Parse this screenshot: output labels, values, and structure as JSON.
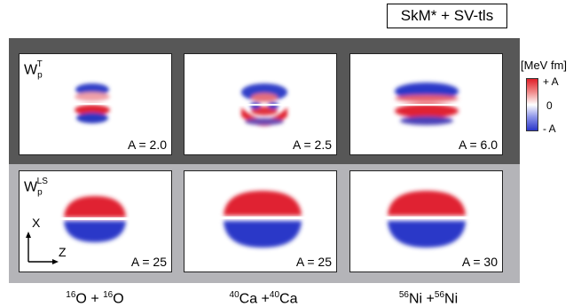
{
  "title": "SkM* + SV-tls",
  "colorbar": {
    "unit": "[MeV fm]",
    "max_label": "+ A",
    "mid_label": "0",
    "min_label": "- A",
    "max_color": "#e0202a",
    "mid_color": "#ffffff",
    "min_color": "#2a36c8"
  },
  "rows": [
    {
      "label_main": "W",
      "label_sub": "p",
      "label_sup": "T",
      "band_color": "#575757"
    },
    {
      "label_main": "W",
      "label_sub": "p",
      "label_sup": "LS",
      "band_color": "#b4b4b8"
    }
  ],
  "panels": [
    {
      "row": 0,
      "col": 0,
      "amplitude": "A = 2.0",
      "pattern": "tensor-small"
    },
    {
      "row": 0,
      "col": 1,
      "amplitude": "A = 2.5",
      "pattern": "tensor-ring"
    },
    {
      "row": 0,
      "col": 2,
      "amplitude": "A = 6.0",
      "pattern": "tensor-large"
    },
    {
      "row": 1,
      "col": 0,
      "amplitude": "A = 25",
      "pattern": "ls-small"
    },
    {
      "row": 1,
      "col": 1,
      "amplitude": "A = 25",
      "pattern": "ls-medium"
    },
    {
      "row": 1,
      "col": 2,
      "amplitude": "A = 30",
      "pattern": "ls-large"
    }
  ],
  "axes": {
    "vertical": "X",
    "horizontal": "Z"
  },
  "systems": [
    {
      "a1": "16",
      "el1": "O",
      "op": " + ",
      "a2": "16",
      "el2": "O"
    },
    {
      "a1": "40",
      "el1": "Ca",
      "op": " +",
      "a2": "40",
      "el2": "Ca"
    },
    {
      "a1": "56",
      "el1": "Ni",
      "op": " +",
      "a2": "56",
      "el2": "Ni"
    }
  ]
}
